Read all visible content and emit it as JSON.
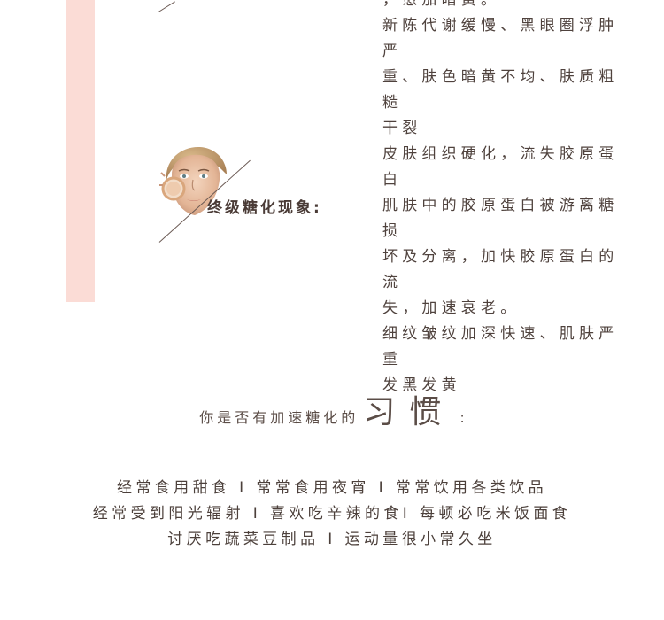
{
  "sections": {
    "partial_top": {
      "lines": [
        "，愈加暗黄。",
        "新陈代谢缓慢、黑眼圈浮肿严",
        "重、肤色暗黄不均、肤质粗糙",
        "干裂"
      ]
    },
    "final_glycation": {
      "label": "终级糖化现象:",
      "lines": [
        "皮肤组织硬化，流失胶原蛋白",
        "肌肤中的胶原蛋白被游离糖损",
        "坏及分离，加快胶原蛋白的流",
        "失，加速衰老。",
        "细纹皱纹加深快速、肌肤严重",
        "发黑发黄"
      ]
    }
  },
  "habits": {
    "prefix": "你是否有加速糖化的",
    "emphasis": "习惯",
    "suffix": ":",
    "items": [
      "经常食用甜食  I  常常食用夜宵  I  常常饮用各类饮品",
      "经常受到阳光辐射  I  喜欢吃辛辣的食I  每顿必吃米饭面食",
      "讨厌吃蔬菜豆制品  I  运动量很小常久坐"
    ]
  },
  "colors": {
    "accent_pink": "#fbdcd6",
    "text": "#4f423d"
  },
  "icons": {
    "face": "woman-face-illustration"
  }
}
